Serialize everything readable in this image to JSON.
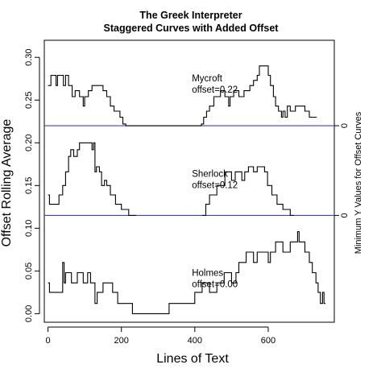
{
  "chart_data": {
    "type": "line",
    "title": "The Greek Interpreter",
    "subtitle": "Staggered Curves with Added Offset",
    "xlabel": "Lines of Text",
    "ylabel": "Offset Rolling Average",
    "right_label": "Minimum Y Values for Offset Curves",
    "xlim": [
      -10,
      780
    ],
    "ylim": [
      -0.01,
      0.32
    ],
    "x_ticks": [
      0,
      200,
      400,
      600
    ],
    "y_ticks": [
      0.0,
      0.05,
      0.1,
      0.15,
      0.2,
      0.25,
      0.3
    ],
    "y_tick_labels": [
      "0.00",
      "0.05",
      "0.10",
      "0.15",
      "0.20",
      "0.25",
      "0.30"
    ],
    "right_ticks": [
      {
        "y": 0.22,
        "label": "0"
      },
      {
        "y": 0.115,
        "label": "0"
      }
    ],
    "baselines": [
      0.22,
      0.115
    ],
    "legend": "none",
    "grid": false,
    "series": [
      {
        "annotation": [
          "Mycroft",
          "offset=0.22"
        ],
        "annotation_at": [
          392,
          0.272
        ],
        "segments": [
          [
            [
              0,
              0.267
            ],
            [
              8,
              0.267
            ],
            [
              8,
              0.279
            ],
            [
              22,
              0.279
            ],
            [
              22,
              0.267
            ],
            [
              26,
              0.267
            ],
            [
              26,
              0.279
            ],
            [
              42,
              0.279
            ],
            [
              42,
              0.267
            ],
            [
              48,
              0.267
            ],
            [
              48,
              0.279
            ],
            [
              56,
              0.279
            ],
            [
              56,
              0.267
            ],
            [
              66,
              0.267
            ],
            [
              66,
              0.254
            ],
            [
              74,
              0.254
            ],
            [
              74,
              0.261
            ],
            [
              86,
              0.261
            ],
            [
              86,
              0.254
            ],
            [
              96,
              0.254
            ],
            [
              96,
              0.243
            ],
            [
              100,
              0.243
            ],
            [
              100,
              0.254
            ],
            [
              110,
              0.254
            ],
            [
              110,
              0.261
            ],
            [
              120,
              0.261
            ],
            [
              120,
              0.267
            ],
            [
              150,
              0.267
            ],
            [
              150,
              0.261
            ],
            [
              160,
              0.261
            ],
            [
              160,
              0.254
            ],
            [
              170,
              0.254
            ],
            [
              170,
              0.243
            ],
            [
              180,
              0.243
            ],
            [
              180,
              0.237
            ],
            [
              196,
              0.237
            ],
            [
              196,
              0.23
            ],
            [
              204,
              0.23
            ],
            [
              204,
              0.222
            ],
            [
              212,
              0.222
            ],
            [
              212,
              0.22
            ],
            [
              418,
              0.22
            ],
            [
              418,
              0.222
            ],
            [
              424,
              0.222
            ],
            [
              424,
              0.23
            ],
            [
              432,
              0.23
            ],
            [
              432,
              0.237
            ],
            [
              440,
              0.237
            ],
            [
              440,
              0.243
            ],
            [
              452,
              0.243
            ],
            [
              452,
              0.254
            ],
            [
              470,
              0.254
            ],
            [
              470,
              0.261
            ],
            [
              482,
              0.261
            ],
            [
              482,
              0.254
            ],
            [
              492,
              0.254
            ],
            [
              492,
              0.243
            ],
            [
              496,
              0.243
            ],
            [
              496,
              0.254
            ],
            [
              506,
              0.254
            ],
            [
              506,
              0.261
            ],
            [
              520,
              0.261
            ],
            [
              520,
              0.254
            ],
            [
              534,
              0.254
            ],
            [
              534,
              0.261
            ],
            [
              550,
              0.261
            ],
            [
              550,
              0.267
            ],
            [
              560,
              0.267
            ],
            [
              560,
              0.273
            ],
            [
              570,
              0.273
            ],
            [
              570,
              0.279
            ],
            [
              576,
              0.279
            ],
            [
              576,
              0.29
            ],
            [
              600,
              0.29
            ],
            [
              600,
              0.279
            ],
            [
              606,
              0.279
            ],
            [
              606,
              0.267
            ],
            [
              614,
              0.267
            ],
            [
              614,
              0.254
            ],
            [
              620,
              0.254
            ],
            [
              620,
              0.243
            ],
            [
              628,
              0.243
            ],
            [
              628,
              0.237
            ],
            [
              636,
              0.237
            ],
            [
              636,
              0.23
            ],
            [
              640,
              0.23
            ],
            [
              640,
              0.237
            ],
            [
              646,
              0.237
            ],
            [
              646,
              0.23
            ],
            [
              652,
              0.23
            ],
            [
              652,
              0.243
            ],
            [
              660,
              0.243
            ],
            [
              660,
              0.237
            ],
            [
              674,
              0.237
            ],
            [
              674,
              0.243
            ],
            [
              700,
              0.243
            ],
            [
              700,
              0.237
            ],
            [
              712,
              0.237
            ],
            [
              712,
              0.23
            ],
            [
              732,
              0.23
            ]
          ]
        ]
      },
      {
        "annotation": [
          "Sherlock",
          "offset=0.12"
        ],
        "annotation_at": [
          392,
          0.16
        ],
        "segments": [
          [
            [
              0,
              0.139
            ],
            [
              4,
              0.139
            ],
            [
              4,
              0.128
            ],
            [
              30,
              0.128
            ],
            [
              30,
              0.139
            ],
            [
              40,
              0.139
            ],
            [
              40,
              0.15
            ],
            [
              48,
              0.15
            ],
            [
              48,
              0.166
            ],
            [
              56,
              0.166
            ],
            [
              56,
              0.184
            ],
            [
              62,
              0.184
            ],
            [
              62,
              0.192
            ],
            [
              70,
              0.192
            ],
            [
              70,
              0.184
            ],
            [
              80,
              0.184
            ],
            [
              80,
              0.192
            ],
            [
              86,
              0.192
            ],
            [
              86,
              0.2
            ],
            [
              120,
              0.2
            ],
            [
              120,
              0.192
            ],
            [
              124,
              0.192
            ],
            [
              124,
              0.2
            ],
            [
              128,
              0.2
            ],
            [
              128,
              0.166
            ],
            [
              132,
              0.166
            ],
            [
              132,
              0.172
            ],
            [
              140,
              0.172
            ],
            [
              140,
              0.166
            ],
            [
              146,
              0.166
            ],
            [
              146,
              0.15
            ],
            [
              154,
              0.15
            ],
            [
              154,
              0.156
            ],
            [
              160,
              0.156
            ],
            [
              160,
              0.15
            ],
            [
              170,
              0.15
            ],
            [
              170,
              0.139
            ],
            [
              184,
              0.139
            ],
            [
              184,
              0.128
            ],
            [
              200,
              0.128
            ],
            [
              200,
              0.122
            ],
            [
              220,
              0.122
            ],
            [
              220,
              0.115
            ],
            [
              240,
              0.115
            ]
          ],
          [
            [
              420,
              0.115
            ],
            [
              430,
              0.115
            ],
            [
              430,
              0.128
            ],
            [
              440,
              0.128
            ],
            [
              440,
              0.139
            ],
            [
              460,
              0.139
            ],
            [
              460,
              0.15
            ],
            [
              482,
              0.15
            ],
            [
              482,
              0.166
            ],
            [
              500,
              0.166
            ],
            [
              500,
              0.156
            ],
            [
              510,
              0.156
            ],
            [
              510,
              0.166
            ],
            [
              528,
              0.166
            ],
            [
              528,
              0.156
            ],
            [
              536,
              0.156
            ],
            [
              536,
              0.166
            ],
            [
              546,
              0.166
            ],
            [
              546,
              0.172
            ],
            [
              560,
              0.172
            ],
            [
              560,
              0.166
            ],
            [
              570,
              0.166
            ],
            [
              570,
              0.172
            ],
            [
              590,
              0.172
            ],
            [
              590,
              0.166
            ],
            [
              598,
              0.166
            ],
            [
              598,
              0.15
            ],
            [
              610,
              0.15
            ],
            [
              610,
              0.139
            ],
            [
              624,
              0.139
            ],
            [
              624,
              0.128
            ],
            [
              640,
              0.128
            ],
            [
              640,
              0.122
            ],
            [
              660,
              0.122
            ],
            [
              660,
              0.115
            ],
            [
              670,
              0.115
            ]
          ]
        ]
      },
      {
        "annotation": [
          "Holmes",
          "offset=0.00"
        ],
        "annotation_at": [
          392,
          0.044
        ],
        "segments": [
          [
            [
              0,
              0.036
            ],
            [
              4,
              0.036
            ],
            [
              4,
              0.025
            ],
            [
              40,
              0.025
            ],
            [
              40,
              0.06
            ],
            [
              44,
              0.06
            ],
            [
              44,
              0.036
            ],
            [
              48,
              0.036
            ],
            [
              48,
              0.048
            ],
            [
              64,
              0.048
            ],
            [
              64,
              0.036
            ],
            [
              80,
              0.036
            ],
            [
              80,
              0.048
            ],
            [
              96,
              0.048
            ],
            [
              96,
              0.036
            ],
            [
              108,
              0.036
            ],
            [
              108,
              0.048
            ],
            [
              116,
              0.048
            ],
            [
              116,
              0.036
            ],
            [
              128,
              0.036
            ],
            [
              128,
              0.012
            ],
            [
              134,
              0.012
            ],
            [
              134,
              0.025
            ],
            [
              150,
              0.025
            ],
            [
              150,
              0.036
            ],
            [
              176,
              0.036
            ],
            [
              176,
              0.025
            ],
            [
              190,
              0.025
            ],
            [
              190,
              0.012
            ],
            [
              230,
              0.012
            ],
            [
              230,
              0.0
            ],
            [
              330,
              0.0
            ],
            [
              330,
              0.012
            ],
            [
              400,
              0.012
            ],
            [
              400,
              0.025
            ],
            [
              420,
              0.025
            ],
            [
              420,
              0.036
            ],
            [
              440,
              0.036
            ],
            [
              440,
              0.025
            ],
            [
              460,
              0.025
            ],
            [
              460,
              0.036
            ],
            [
              480,
              0.036
            ],
            [
              480,
              0.048
            ],
            [
              500,
              0.048
            ],
            [
              500,
              0.036
            ],
            [
              512,
              0.036
            ],
            [
              512,
              0.048
            ],
            [
              520,
              0.048
            ],
            [
              520,
              0.06
            ],
            [
              540,
              0.06
            ],
            [
              540,
              0.072
            ],
            [
              560,
              0.072
            ],
            [
              560,
              0.06
            ],
            [
              570,
              0.06
            ],
            [
              570,
              0.072
            ],
            [
              600,
              0.072
            ],
            [
              600,
              0.06
            ],
            [
              606,
              0.06
            ],
            [
              606,
              0.072
            ],
            [
              620,
              0.072
            ],
            [
              620,
              0.084
            ],
            [
              640,
              0.084
            ],
            [
              640,
              0.072
            ],
            [
              660,
              0.072
            ],
            [
              660,
              0.084
            ],
            [
              680,
              0.084
            ],
            [
              680,
              0.096
            ],
            [
              684,
              0.096
            ],
            [
              684,
              0.084
            ],
            [
              700,
              0.084
            ],
            [
              700,
              0.072
            ],
            [
              712,
              0.072
            ],
            [
              712,
              0.06
            ],
            [
              720,
              0.06
            ],
            [
              720,
              0.048
            ],
            [
              730,
              0.048
            ],
            [
              730,
              0.036
            ],
            [
              736,
              0.036
            ],
            [
              736,
              0.025
            ],
            [
              742,
              0.025
            ],
            [
              742,
              0.012
            ],
            [
              748,
              0.012
            ],
            [
              748,
              0.025
            ],
            [
              752,
              0.025
            ],
            [
              752,
              0.012
            ],
            [
              756,
              0.012
            ]
          ]
        ]
      }
    ]
  }
}
